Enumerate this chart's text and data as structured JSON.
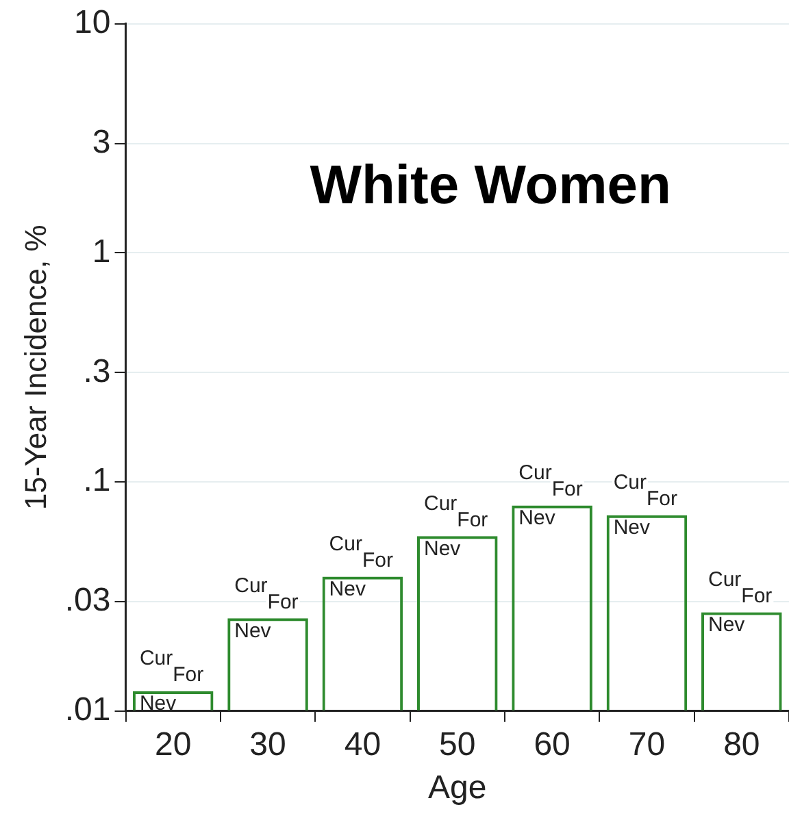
{
  "chart_data": {
    "type": "bar",
    "title": "White Women",
    "xlabel": "Age",
    "ylabel": "15-Year Incidence, %",
    "categories": [
      "20",
      "30",
      "40",
      "50",
      "60",
      "70",
      "80"
    ],
    "values": [
      0.0122,
      0.0254,
      0.0386,
      0.058,
      0.079,
      0.0716,
      0.027
    ],
    "color": "#2e8b2e",
    "log": true,
    "grid": "y",
    "legend": false,
    "ylim": [
      0.01,
      10
    ],
    "yticks": [
      {
        "value": 0.01,
        "label": ".01"
      },
      {
        "value": 0.03,
        "label": ".03"
      },
      {
        "value": 0.1,
        "label": ".1"
      },
      {
        "value": 0.3,
        "label": ".3"
      },
      1,
      3,
      10
    ],
    "annotations": [
      "Cur",
      "For",
      "Nev",
      "Cur",
      "For",
      "Nev",
      "Cur",
      "For",
      "Nev",
      "Cur",
      "For",
      "Nev",
      "Cur",
      "For",
      "Nev",
      "Cur",
      "For",
      "Nev",
      "Cur",
      "For",
      "Nev"
    ]
  }
}
